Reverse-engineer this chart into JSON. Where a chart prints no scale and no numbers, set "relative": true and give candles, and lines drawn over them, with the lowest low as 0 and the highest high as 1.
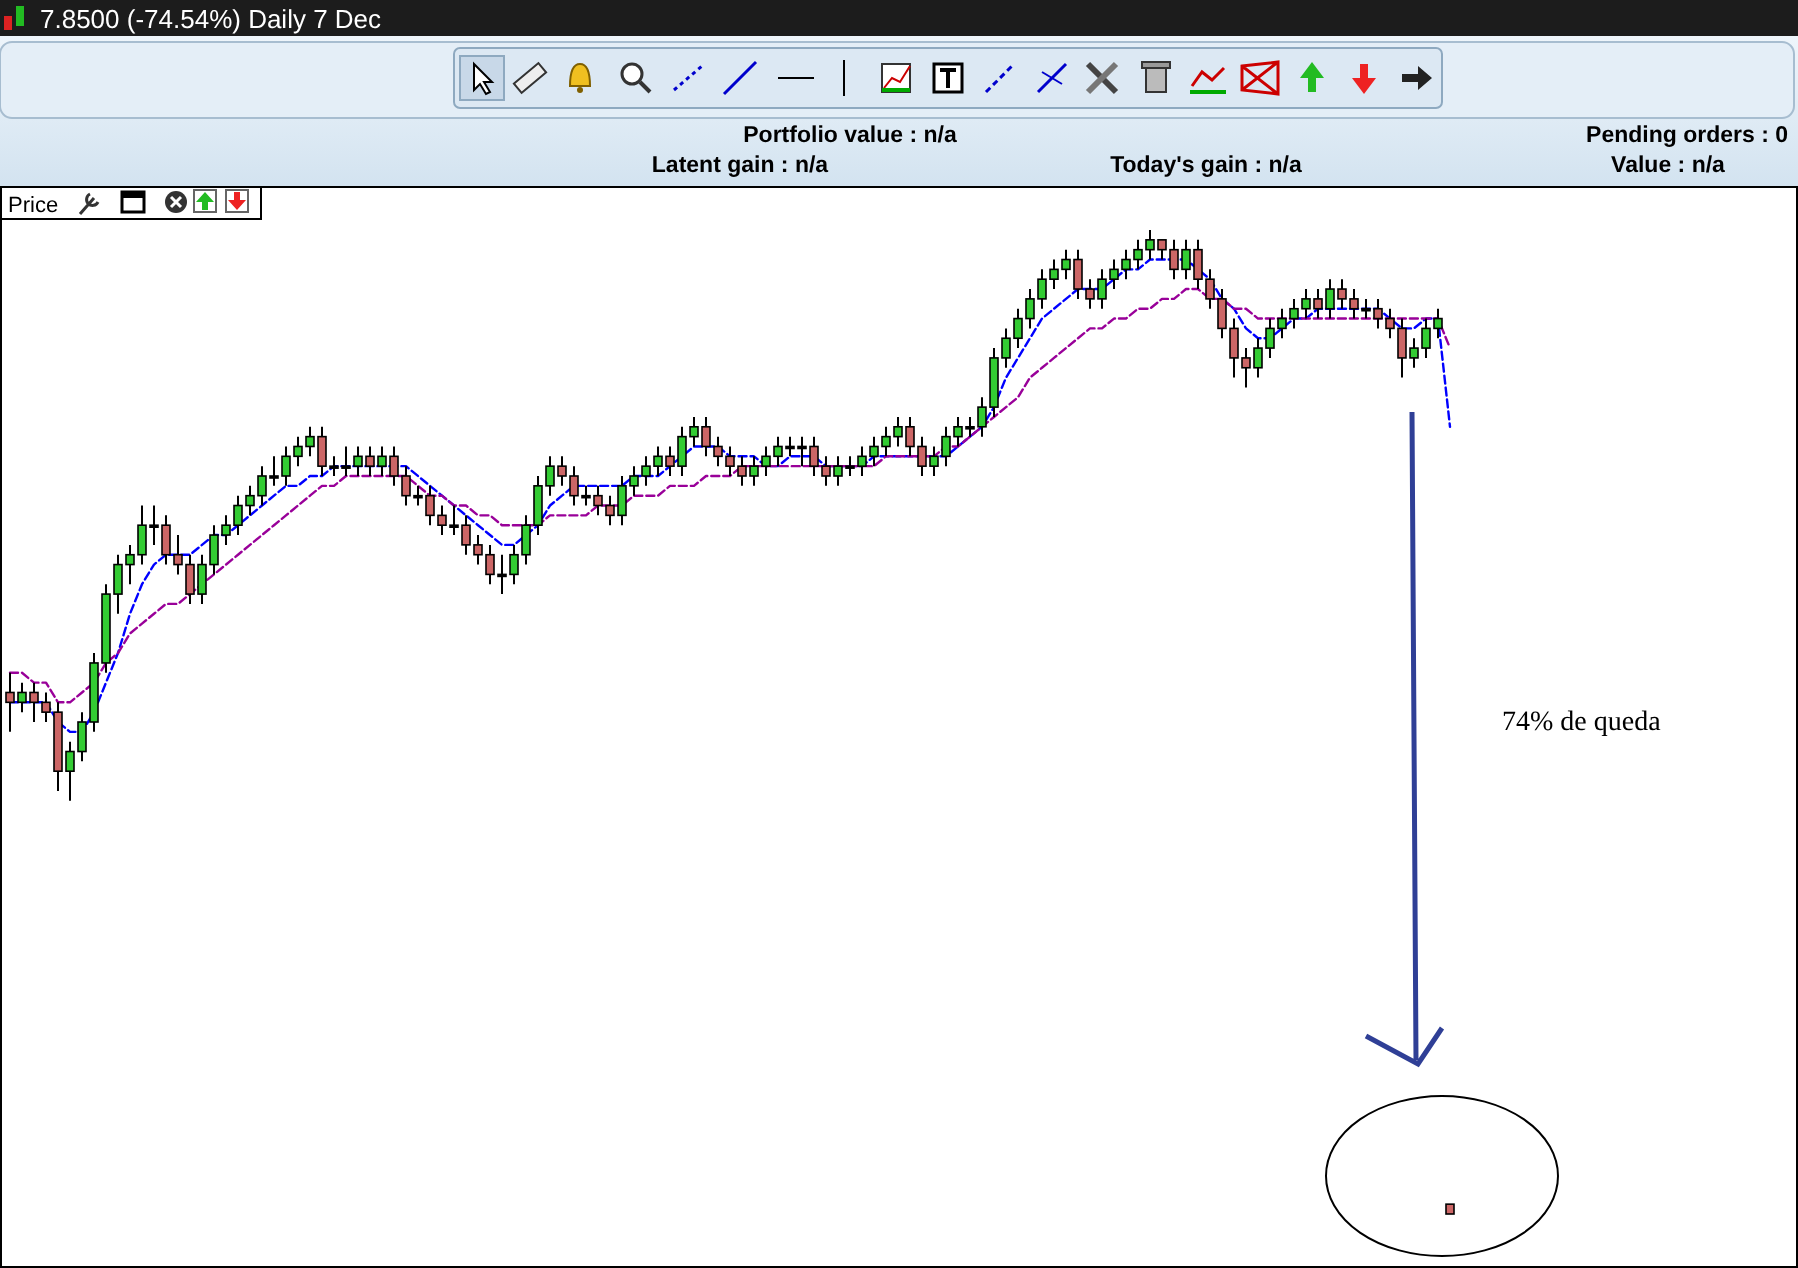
{
  "chart_data": {
    "type": "candlestick",
    "title": "7.8500 (-74.54%)    Daily  7 Dec",
    "relative": true,
    "categories": [
      null,
      null,
      null,
      null,
      null,
      null,
      null,
      null,
      null,
      null,
      null,
      null,
      null,
      null,
      null,
      null,
      null,
      null,
      null,
      null,
      null,
      null,
      null,
      null,
      null,
      null,
      null,
      null,
      null,
      null,
      null,
      null,
      null,
      null,
      null,
      null,
      null,
      null,
      null,
      null,
      null,
      null,
      null,
      null,
      null,
      null,
      null,
      null,
      null,
      null,
      null,
      null,
      null,
      null,
      null,
      null,
      null,
      null,
      null,
      null,
      null,
      null,
      null,
      null,
      null,
      null,
      null,
      null,
      null,
      null,
      null,
      null,
      null,
      null,
      null,
      null,
      null,
      null,
      null,
      null,
      null,
      null,
      null,
      null,
      null,
      null,
      null,
      null,
      null,
      null,
      null,
      null,
      null,
      null,
      null,
      null,
      null,
      null,
      null,
      null,
      null,
      null,
      null,
      null,
      null,
      null,
      null,
      null,
      null,
      null,
      null,
      null,
      null,
      null,
      null,
      null,
      null,
      null,
      null,
      null,
      null
    ],
    "ohlc": [
      [
        0.53,
        0.55,
        0.49,
        0.52
      ],
      [
        0.52,
        0.54,
        0.51,
        0.53
      ],
      [
        0.53,
        0.54,
        0.5,
        0.52
      ],
      [
        0.52,
        0.53,
        0.5,
        0.51
      ],
      [
        0.51,
        0.52,
        0.43,
        0.45
      ],
      [
        0.45,
        0.48,
        0.42,
        0.47
      ],
      [
        0.47,
        0.51,
        0.46,
        0.5
      ],
      [
        0.5,
        0.57,
        0.49,
        0.56
      ],
      [
        0.56,
        0.64,
        0.55,
        0.63
      ],
      [
        0.63,
        0.67,
        0.61,
        0.66
      ],
      [
        0.66,
        0.68,
        0.64,
        0.67
      ],
      [
        0.67,
        0.72,
        0.66,
        0.7
      ],
      [
        0.7,
        0.72,
        0.68,
        0.7
      ],
      [
        0.7,
        0.71,
        0.66,
        0.67
      ],
      [
        0.67,
        0.69,
        0.65,
        0.66
      ],
      [
        0.66,
        0.67,
        0.62,
        0.63
      ],
      [
        0.63,
        0.67,
        0.62,
        0.66
      ],
      [
        0.66,
        0.7,
        0.65,
        0.69
      ],
      [
        0.69,
        0.71,
        0.68,
        0.7
      ],
      [
        0.7,
        0.73,
        0.69,
        0.72
      ],
      [
        0.72,
        0.74,
        0.71,
        0.73
      ],
      [
        0.73,
        0.76,
        0.72,
        0.75
      ],
      [
        0.75,
        0.77,
        0.74,
        0.75
      ],
      [
        0.75,
        0.78,
        0.74,
        0.77
      ],
      [
        0.77,
        0.79,
        0.76,
        0.78
      ],
      [
        0.78,
        0.8,
        0.77,
        0.79
      ],
      [
        0.79,
        0.8,
        0.75,
        0.76
      ],
      [
        0.76,
        0.77,
        0.75,
        0.76
      ],
      [
        0.76,
        0.78,
        0.75,
        0.76
      ],
      [
        0.76,
        0.78,
        0.75,
        0.77
      ],
      [
        0.77,
        0.78,
        0.75,
        0.76
      ],
      [
        0.76,
        0.78,
        0.75,
        0.77
      ],
      [
        0.77,
        0.78,
        0.74,
        0.75
      ],
      [
        0.75,
        0.76,
        0.72,
        0.73
      ],
      [
        0.73,
        0.74,
        0.72,
        0.73
      ],
      [
        0.73,
        0.74,
        0.7,
        0.71
      ],
      [
        0.71,
        0.72,
        0.69,
        0.7
      ],
      [
        0.7,
        0.72,
        0.69,
        0.7
      ],
      [
        0.7,
        0.71,
        0.67,
        0.68
      ],
      [
        0.68,
        0.69,
        0.66,
        0.67
      ],
      [
        0.67,
        0.68,
        0.64,
        0.65
      ],
      [
        0.65,
        0.67,
        0.63,
        0.65
      ],
      [
        0.65,
        0.68,
        0.64,
        0.67
      ],
      [
        0.67,
        0.71,
        0.66,
        0.7
      ],
      [
        0.7,
        0.75,
        0.69,
        0.74
      ],
      [
        0.74,
        0.77,
        0.73,
        0.76
      ],
      [
        0.76,
        0.77,
        0.74,
        0.75
      ],
      [
        0.75,
        0.76,
        0.72,
        0.73
      ],
      [
        0.73,
        0.74,
        0.72,
        0.73
      ],
      [
        0.73,
        0.74,
        0.71,
        0.72
      ],
      [
        0.72,
        0.73,
        0.7,
        0.71
      ],
      [
        0.71,
        0.75,
        0.7,
        0.74
      ],
      [
        0.74,
        0.76,
        0.73,
        0.75
      ],
      [
        0.75,
        0.77,
        0.74,
        0.76
      ],
      [
        0.76,
        0.78,
        0.75,
        0.77
      ],
      [
        0.77,
        0.78,
        0.75,
        0.76
      ],
      [
        0.76,
        0.8,
        0.75,
        0.79
      ],
      [
        0.79,
        0.81,
        0.78,
        0.8
      ],
      [
        0.8,
        0.81,
        0.77,
        0.78
      ],
      [
        0.78,
        0.79,
        0.76,
        0.77
      ],
      [
        0.77,
        0.78,
        0.75,
        0.76
      ],
      [
        0.76,
        0.77,
        0.74,
        0.75
      ],
      [
        0.75,
        0.77,
        0.74,
        0.76
      ],
      [
        0.76,
        0.78,
        0.75,
        0.77
      ],
      [
        0.77,
        0.79,
        0.76,
        0.78
      ],
      [
        0.78,
        0.79,
        0.77,
        0.78
      ],
      [
        0.78,
        0.79,
        0.76,
        0.78
      ],
      [
        0.78,
        0.79,
        0.75,
        0.76
      ],
      [
        0.76,
        0.77,
        0.74,
        0.75
      ],
      [
        0.75,
        0.77,
        0.74,
        0.76
      ],
      [
        0.76,
        0.77,
        0.75,
        0.76
      ],
      [
        0.76,
        0.78,
        0.75,
        0.77
      ],
      [
        0.77,
        0.79,
        0.76,
        0.78
      ],
      [
        0.78,
        0.8,
        0.77,
        0.79
      ],
      [
        0.79,
        0.81,
        0.78,
        0.8
      ],
      [
        0.8,
        0.81,
        0.77,
        0.78
      ],
      [
        0.78,
        0.79,
        0.75,
        0.76
      ],
      [
        0.76,
        0.78,
        0.75,
        0.77
      ],
      [
        0.77,
        0.8,
        0.76,
        0.79
      ],
      [
        0.79,
        0.81,
        0.78,
        0.8
      ],
      [
        0.8,
        0.81,
        0.79,
        0.8
      ],
      [
        0.8,
        0.83,
        0.79,
        0.82
      ],
      [
        0.82,
        0.88,
        0.81,
        0.87
      ],
      [
        0.87,
        0.9,
        0.86,
        0.89
      ],
      [
        0.89,
        0.92,
        0.88,
        0.91
      ],
      [
        0.91,
        0.94,
        0.9,
        0.93
      ],
      [
        0.93,
        0.96,
        0.92,
        0.95
      ],
      [
        0.95,
        0.97,
        0.94,
        0.96
      ],
      [
        0.96,
        0.98,
        0.95,
        0.97
      ],
      [
        0.97,
        0.98,
        0.93,
        0.94
      ],
      [
        0.94,
        0.95,
        0.92,
        0.93
      ],
      [
        0.93,
        0.96,
        0.92,
        0.95
      ],
      [
        0.95,
        0.97,
        0.94,
        0.96
      ],
      [
        0.96,
        0.98,
        0.95,
        0.97
      ],
      [
        0.97,
        0.99,
        0.96,
        0.98
      ],
      [
        0.98,
        1,
        0.97,
        0.99
      ],
      [
        0.99,
        0.99,
        0.97,
        0.98
      ],
      [
        0.98,
        0.99,
        0.95,
        0.96
      ],
      [
        0.96,
        0.99,
        0.95,
        0.98
      ],
      [
        0.98,
        0.99,
        0.94,
        0.95
      ],
      [
        0.95,
        0.96,
        0.92,
        0.93
      ],
      [
        0.93,
        0.94,
        0.89,
        0.9
      ],
      [
        0.9,
        0.91,
        0.85,
        0.87
      ],
      [
        0.87,
        0.88,
        0.84,
        0.86
      ],
      [
        0.86,
        0.89,
        0.85,
        0.88
      ],
      [
        0.88,
        0.91,
        0.87,
        0.9
      ],
      [
        0.9,
        0.92,
        0.89,
        0.91
      ],
      [
        0.91,
        0.93,
        0.9,
        0.92
      ],
      [
        0.92,
        0.94,
        0.91,
        0.93
      ],
      [
        0.93,
        0.94,
        0.91,
        0.92
      ],
      [
        0.92,
        0.95,
        0.91,
        0.94
      ],
      [
        0.94,
        0.95,
        0.92,
        0.93
      ],
      [
        0.93,
        0.94,
        0.91,
        0.92
      ],
      [
        0.92,
        0.93,
        0.91,
        0.92
      ],
      [
        0.92,
        0.93,
        0.9,
        0.91
      ],
      [
        0.91,
        0.92,
        0.89,
        0.9
      ],
      [
        0.9,
        0.91,
        0.85,
        0.87
      ],
      [
        0.87,
        0.89,
        0.86,
        0.88
      ],
      [
        0.88,
        0.91,
        0.87,
        0.9
      ],
      [
        0.9,
        0.92,
        0.89,
        0.91
      ],
      [
        0.01,
        0.01,
        0,
        0
      ]
    ],
    "series": [
      {
        "type": "line",
        "color": "#0000ff",
        "line_style": "dashed",
        "values": [
          0.52,
          0.52,
          0.52,
          0.52,
          0.5,
          0.49,
          0.49,
          0.51,
          0.54,
          0.57,
          0.61,
          0.64,
          0.66,
          0.67,
          0.67,
          0.67,
          0.68,
          0.69,
          0.69,
          0.7,
          0.71,
          0.72,
          0.73,
          0.74,
          0.74,
          0.75,
          0.75,
          0.76,
          0.76,
          0.76,
          0.76,
          0.76,
          0.76,
          0.76,
          0.75,
          0.74,
          0.73,
          0.72,
          0.71,
          0.7,
          0.69,
          0.68,
          0.68,
          0.69,
          0.7,
          0.72,
          0.73,
          0.74,
          0.74,
          0.74,
          0.74,
          0.74,
          0.75,
          0.75,
          0.75,
          0.76,
          0.77,
          0.78,
          0.78,
          0.78,
          0.77,
          0.77,
          0.77,
          0.76,
          0.76,
          0.77,
          0.77,
          0.77,
          0.76,
          0.76,
          0.76,
          0.76,
          0.77,
          0.77,
          0.77,
          0.77,
          0.77,
          0.77,
          0.77,
          0.78,
          0.79,
          0.8,
          0.82,
          0.85,
          0.87,
          0.89,
          0.91,
          0.92,
          0.93,
          0.94,
          0.94,
          0.94,
          0.95,
          0.96,
          0.96,
          0.97,
          0.97,
          0.97,
          0.97,
          0.96,
          0.95,
          0.93,
          0.92,
          0.9,
          0.89,
          0.89,
          0.9,
          0.91,
          0.91,
          0.92,
          0.92,
          0.92,
          0.92,
          0.92,
          0.92,
          0.91,
          0.9,
          0.9,
          0.91,
          0.91,
          0.8
        ]
      },
      {
        "type": "line",
        "color": "#990099",
        "line_style": "dashed",
        "values": [
          0.55,
          0.55,
          0.54,
          0.54,
          0.52,
          0.52,
          0.53,
          0.54,
          0.56,
          0.57,
          0.59,
          0.6,
          0.61,
          0.62,
          0.62,
          0.63,
          0.64,
          0.65,
          0.66,
          0.67,
          0.68,
          0.69,
          0.7,
          0.71,
          0.72,
          0.73,
          0.74,
          0.74,
          0.75,
          0.75,
          0.75,
          0.75,
          0.75,
          0.75,
          0.74,
          0.73,
          0.73,
          0.72,
          0.72,
          0.71,
          0.71,
          0.7,
          0.7,
          0.7,
          0.7,
          0.71,
          0.71,
          0.71,
          0.71,
          0.72,
          0.72,
          0.72,
          0.73,
          0.73,
          0.73,
          0.74,
          0.74,
          0.74,
          0.75,
          0.75,
          0.75,
          0.76,
          0.76,
          0.76,
          0.76,
          0.76,
          0.76,
          0.76,
          0.76,
          0.76,
          0.76,
          0.76,
          0.76,
          0.77,
          0.77,
          0.77,
          0.77,
          0.77,
          0.78,
          0.78,
          0.79,
          0.8,
          0.81,
          0.82,
          0.83,
          0.85,
          0.86,
          0.87,
          0.88,
          0.89,
          0.9,
          0.9,
          0.91,
          0.91,
          0.92,
          0.92,
          0.93,
          0.93,
          0.94,
          0.94,
          0.93,
          0.93,
          0.92,
          0.92,
          0.91,
          0.91,
          0.91,
          0.91,
          0.91,
          0.91,
          0.91,
          0.91,
          0.91,
          0.91,
          0.91,
          0.91,
          0.91,
          0.91,
          0.91,
          0.91,
          0.88
        ]
      }
    ],
    "annotations": [
      "Portfolio value : n/a",
      "Pending orders : 0",
      "Latent gain : n/a",
      "Today's gain : n/a",
      "Value : n/a",
      "Price",
      "74% de queda"
    ]
  }
}
